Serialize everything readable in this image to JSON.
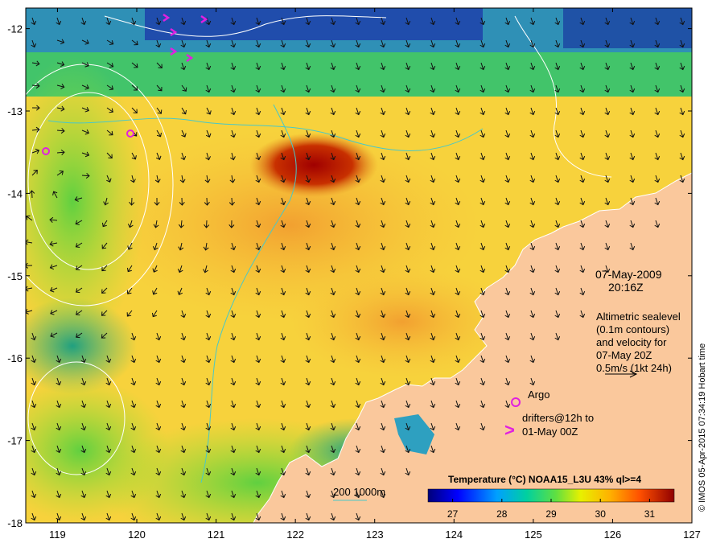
{
  "map": {
    "longitude_ticks": [
      "119",
      "120",
      "121",
      "122",
      "123",
      "124",
      "125",
      "126",
      "127"
    ],
    "latitude_ticks": [
      "-12",
      "-13",
      "-14",
      "-15",
      "-16",
      "-17",
      "-18"
    ],
    "lon_range": [
      118.6,
      127.0
    ],
    "lat_range": [
      -18.0,
      -11.75
    ]
  },
  "annotations": {
    "date": "07-May-2009",
    "time": "20:16Z",
    "altimetry_line1": "Altimetric sealevel",
    "altimetry_line2": "(0.1m contours)",
    "altimetry_line3": "and velocity for",
    "altimetry_line4": "07-May 20Z",
    "altimetry_line5": "0.5m/s (1kt 24h)",
    "argo_label": "Argo",
    "drifters_line1": "drifters@12h to",
    "drifters_line2": "01-May 00Z",
    "drifter_symbol": ">",
    "depth_legend": "200  1000m"
  },
  "credit": "© IMOS 05-Apr-2015 07:34:19 Hobart time",
  "colorbar": {
    "title": "Temperature (°C) NOAA15_L3U 43% ql>=4",
    "ticks": [
      "27",
      "28",
      "29",
      "30",
      "31"
    ],
    "range": [
      26.5,
      31.5
    ]
  },
  "colors": {
    "land": "#fac89c",
    "argo": "#e020e0",
    "contour": "#ffffff",
    "bathymetry": "#48c8c8"
  }
}
